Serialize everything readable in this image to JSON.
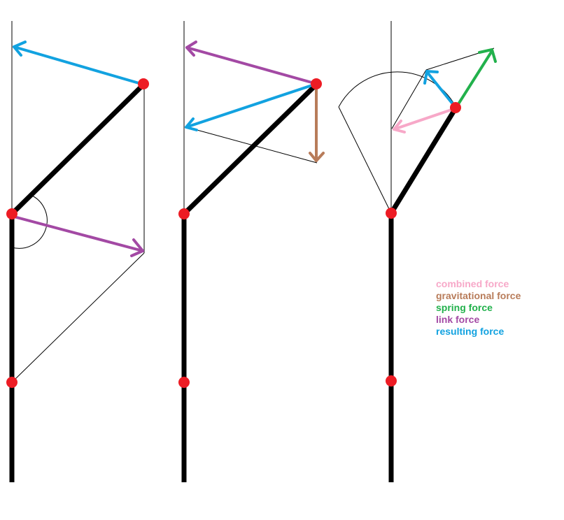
{
  "colors": {
    "combined": "#f7a8c8",
    "gravitational": "#b87c5a",
    "spring": "#22b14c",
    "link": "#a349a4",
    "resulting": "#12a2e0",
    "joint": "#ed1c24",
    "beam": "#000000"
  },
  "legend": {
    "items": [
      {
        "key": "combined",
        "label": "combined force"
      },
      {
        "key": "gravitational",
        "label": "gravitational force"
      },
      {
        "key": "spring",
        "label": "spring force"
      },
      {
        "key": "link",
        "label": "link force"
      },
      {
        "key": "resulting",
        "label": "resulting force"
      }
    ]
  }
}
